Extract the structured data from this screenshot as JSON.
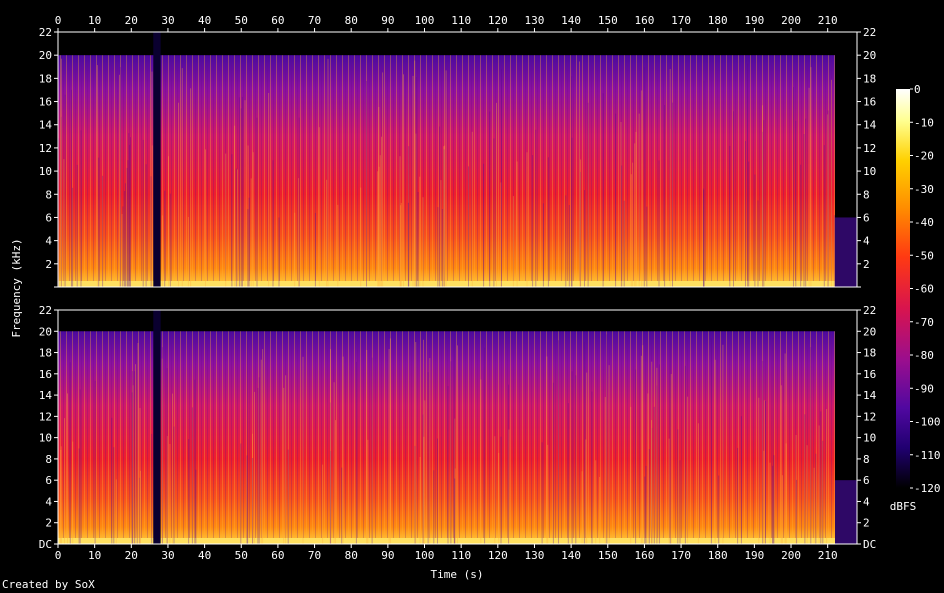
{
  "chart_data": {
    "type": "heatmap",
    "subtype": "spectrogram",
    "channels": 2,
    "xlabel": "Time (s)",
    "ylabel": "Frequency (kHz)",
    "x_ticks": [
      0,
      10,
      20,
      30,
      40,
      50,
      60,
      70,
      80,
      90,
      100,
      110,
      120,
      130,
      140,
      150,
      160,
      170,
      180,
      190,
      200,
      210
    ],
    "xlim": [
      0,
      218
    ],
    "y_ticks": [
      {
        "value": 0,
        "label": "DC"
      },
      {
        "value": 2,
        "label": "2"
      },
      {
        "value": 4,
        "label": "4"
      },
      {
        "value": 6,
        "label": "6"
      },
      {
        "value": 8,
        "label": "8"
      },
      {
        "value": 10,
        "label": "10"
      },
      {
        "value": 12,
        "label": "12"
      },
      {
        "value": 14,
        "label": "14"
      },
      {
        "value": 16,
        "label": "16"
      },
      {
        "value": 18,
        "label": "18"
      },
      {
        "value": 20,
        "label": "20"
      },
      {
        "value": 22,
        "label": "22"
      }
    ],
    "ylim_khz": [
      0,
      22
    ],
    "colorbar": {
      "label": "dBFS",
      "ticks": [
        0,
        -10,
        -20,
        -30,
        -40,
        -50,
        -60,
        -70,
        -80,
        -90,
        -100,
        -110,
        -120
      ],
      "range": [
        -120,
        0
      ],
      "colors": [
        "#000000",
        "#12003a",
        "#3a0580",
        "#6a0aa0",
        "#a0108a",
        "#d0185a",
        "#f02a2a",
        "#ff5a10",
        "#ff8c00",
        "#ffbf00",
        "#ffe850",
        "#ffffc0",
        "#ffffff"
      ]
    },
    "observed_features": {
      "content_cutoff_khz": 20,
      "silent_gap_s": [
        26,
        28
      ],
      "track_end_s": 212
    }
  },
  "footer": {
    "credit": "Created by SoX"
  }
}
